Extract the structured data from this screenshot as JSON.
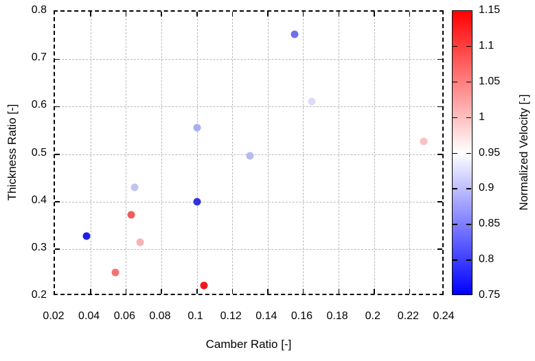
{
  "chart_data": {
    "type": "scatter",
    "title": "",
    "xlabel": "Camber Ratio [-]",
    "ylabel": "Thickness Ratio [-]",
    "colorbar_label": "Normalized Velocity [-]",
    "xlim": [
      0.02,
      0.24
    ],
    "ylim": [
      0.2,
      0.8
    ],
    "clim": [
      0.75,
      1.15
    ],
    "grid": true,
    "legend_position": "none",
    "colormap": {
      "low_color": "#0000ff",
      "mid_color": "#ffffff",
      "high_color": "#ff0000",
      "mid_value": 0.95
    },
    "x_ticks": [
      {
        "v": 0.02,
        "label": "0.02"
      },
      {
        "v": 0.04,
        "label": "0.04"
      },
      {
        "v": 0.06,
        "label": "0.06"
      },
      {
        "v": 0.08,
        "label": "0.08"
      },
      {
        "v": 0.1,
        "label": "0.1"
      },
      {
        "v": 0.12,
        "label": "0.12"
      },
      {
        "v": 0.14,
        "label": "0.14"
      },
      {
        "v": 0.16,
        "label": "0.16"
      },
      {
        "v": 0.18,
        "label": "0.18"
      },
      {
        "v": 0.2,
        "label": "0.2"
      },
      {
        "v": 0.22,
        "label": "0.22"
      },
      {
        "v": 0.24,
        "label": "0.24"
      }
    ],
    "y_ticks": [
      {
        "v": 0.2,
        "label": "0.2"
      },
      {
        "v": 0.3,
        "label": "0.3"
      },
      {
        "v": 0.4,
        "label": "0.4"
      },
      {
        "v": 0.5,
        "label": "0.5"
      },
      {
        "v": 0.6,
        "label": "0.6"
      },
      {
        "v": 0.7,
        "label": "0.7"
      },
      {
        "v": 0.8,
        "label": "0.8"
      }
    ],
    "colorbar_ticks": [
      {
        "v": 1.15,
        "label": "1.15"
      },
      {
        "v": 1.1,
        "label": "1.1"
      },
      {
        "v": 1.05,
        "label": "1.05"
      },
      {
        "v": 1.0,
        "label": "1"
      },
      {
        "v": 0.95,
        "label": "0.95"
      },
      {
        "v": 0.9,
        "label": "0.9"
      },
      {
        "v": 0.85,
        "label": "0.85"
      },
      {
        "v": 0.8,
        "label": "0.8"
      },
      {
        "v": 0.75,
        "label": "0.75"
      }
    ],
    "points": [
      {
        "x": 0.038,
        "y": 0.327,
        "velocity": 0.78,
        "color": "#2020e4"
      },
      {
        "x": 0.054,
        "y": 0.25,
        "velocity": 1.05,
        "color": "#f47272"
      },
      {
        "x": 0.063,
        "y": 0.372,
        "velocity": 1.07,
        "color": "#ee5c5c"
      },
      {
        "x": 0.065,
        "y": 0.43,
        "velocity": 0.9,
        "color": "#c2c4f2"
      },
      {
        "x": 0.068,
        "y": 0.314,
        "velocity": 1.01,
        "color": "#f8b2b2"
      },
      {
        "x": 0.1,
        "y": 0.4,
        "velocity": 0.79,
        "color": "#3232de"
      },
      {
        "x": 0.1,
        "y": 0.555,
        "velocity": 0.88,
        "color": "#a8aeef"
      },
      {
        "x": 0.104,
        "y": 0.223,
        "velocity": 1.13,
        "color": "#ee1a1a"
      },
      {
        "x": 0.13,
        "y": 0.497,
        "velocity": 0.89,
        "color": "#b6baee"
      },
      {
        "x": 0.155,
        "y": 0.752,
        "velocity": 0.84,
        "color": "#7070ec"
      },
      {
        "x": 0.165,
        "y": 0.61,
        "velocity": 0.92,
        "color": "#dcdcf6"
      },
      {
        "x": 0.228,
        "y": 0.527,
        "velocity": 0.99,
        "color": "#f8c2c2"
      }
    ]
  }
}
